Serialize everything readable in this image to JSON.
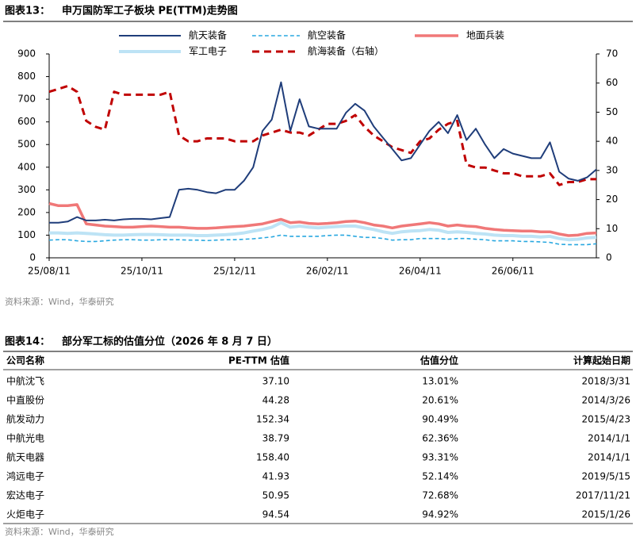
{
  "chart_data": {
    "type": "line",
    "figure_label": "图表13：",
    "title": "申万国防军工子板块 PE(TTM)走势图",
    "categories": [
      "25/08/11",
      null,
      null,
      null,
      null,
      null,
      null,
      null,
      null,
      null,
      "25/10/11",
      null,
      null,
      null,
      null,
      null,
      null,
      null,
      null,
      null,
      "25/12/11",
      null,
      null,
      null,
      null,
      null,
      null,
      null,
      null,
      null,
      "26/02/11",
      null,
      null,
      null,
      null,
      null,
      null,
      null,
      null,
      null,
      "26/04/11",
      null,
      null,
      null,
      null,
      null,
      null,
      null,
      null,
      null,
      "26/06/11",
      null,
      null,
      null,
      null,
      null,
      null,
      null,
      null,
      null
    ],
    "ylim": [
      0,
      900
    ],
    "yticks": [
      0,
      100,
      200,
      300,
      400,
      500,
      600,
      700,
      800,
      900
    ],
    "y2lim": [
      0,
      70
    ],
    "y2ticks": [
      0,
      10,
      20,
      30,
      40,
      50,
      60,
      70
    ],
    "series": [
      {
        "name": "航天装备",
        "color": "#1f3d7a",
        "style": "solid",
        "width": 2,
        "values": [
          155,
          155,
          160,
          180,
          165,
          165,
          168,
          165,
          170,
          172,
          172,
          170,
          175,
          180,
          300,
          305,
          300,
          290,
          285,
          300,
          300,
          340,
          400,
          560,
          610,
          775,
          560,
          700,
          580,
          570,
          570,
          570,
          640,
          680,
          650,
          580,
          530,
          480,
          430,
          440,
          500,
          560,
          600,
          550,
          630,
          520,
          570,
          500,
          440,
          480,
          460,
          450,
          440,
          440,
          510,
          380,
          350,
          340,
          355,
          390
        ]
      },
      {
        "name": "航空装备",
        "color": "#29a8e0",
        "style": "dashed",
        "width": 1.6,
        "values": [
          78,
          80,
          80,
          75,
          72,
          72,
          75,
          78,
          80,
          80,
          78,
          78,
          80,
          80,
          80,
          78,
          78,
          76,
          78,
          80,
          80,
          82,
          84,
          88,
          92,
          100,
          95,
          95,
          95,
          95,
          98,
          100,
          100,
          95,
          90,
          90,
          85,
          78,
          80,
          80,
          85,
          85,
          85,
          82,
          85,
          85,
          82,
          80,
          75,
          75,
          75,
          72,
          72,
          70,
          68,
          60,
          58,
          58,
          58,
          62
        ]
      },
      {
        "name": "地面兵装",
        "color": "#f07878",
        "style": "solid",
        "width": 3.5,
        "values": [
          240,
          230,
          230,
          235,
          150,
          145,
          140,
          138,
          135,
          135,
          138,
          140,
          138,
          135,
          135,
          132,
          130,
          130,
          132,
          135,
          138,
          140,
          145,
          150,
          160,
          170,
          155,
          158,
          152,
          150,
          152,
          155,
          160,
          162,
          155,
          145,
          140,
          132,
          140,
          145,
          150,
          155,
          150,
          140,
          145,
          140,
          138,
          130,
          125,
          122,
          120,
          118,
          118,
          115,
          115,
          105,
          98,
          100,
          108,
          110
        ]
      },
      {
        "name": "军工电子",
        "color": "#bde3f5",
        "style": "solid",
        "width": 4,
        "values": [
          110,
          110,
          108,
          110,
          108,
          105,
          102,
          100,
          100,
          102,
          103,
          103,
          102,
          100,
          100,
          100,
          98,
          98,
          100,
          102,
          105,
          110,
          118,
          125,
          135,
          155,
          135,
          140,
          135,
          132,
          135,
          138,
          140,
          140,
          132,
          125,
          115,
          108,
          115,
          118,
          120,
          125,
          122,
          112,
          115,
          112,
          108,
          105,
          100,
          98,
          98,
          95,
          95,
          92,
          95,
          85,
          80,
          82,
          88,
          90
        ]
      },
      {
        "name": "航海装备（右轴）",
        "color": "#c00000",
        "style": "dashed",
        "width": 3,
        "axis": "y2",
        "values": [
          57,
          58,
          59,
          57,
          47,
          45,
          44,
          57,
          56,
          56,
          56,
          56,
          56,
          57,
          42,
          40,
          40,
          41,
          41,
          41,
          40,
          40,
          40,
          42,
          43,
          44,
          43,
          43,
          42,
          44,
          46,
          46,
          47,
          49,
          45,
          42,
          40,
          38,
          37,
          36,
          40,
          41,
          44,
          46,
          47,
          32,
          31,
          31,
          30,
          29,
          29,
          28,
          28,
          28,
          29,
          25,
          26,
          26,
          27,
          27
        ]
      }
    ]
  },
  "source_1": "资料来源：Wind，华泰研究",
  "table": {
    "label": "图表14：",
    "title": "部分军工标的估值分位（2026 年 8 月 7 日）",
    "columns": [
      "公司名称",
      "PE-TTM 估值",
      "估值分位",
      "计算起始日期"
    ],
    "rows": [
      [
        "中航沈飞",
        "37.10",
        "13.01%",
        "2018/3/31"
      ],
      [
        "中直股份",
        "44.28",
        "20.61%",
        "2014/3/26"
      ],
      [
        "航发动力",
        "152.34",
        "90.49%",
        "2015/4/23"
      ],
      [
        "中航光电",
        "38.79",
        "62.36%",
        "2014/1/1"
      ],
      [
        "航天电器",
        "158.40",
        "93.31%",
        "2014/1/1"
      ],
      [
        "鸿远电子",
        "41.93",
        "52.14%",
        "2019/5/15"
      ],
      [
        "宏达电子",
        "50.95",
        "72.68%",
        "2017/11/21"
      ],
      [
        "火炬电子",
        "94.54",
        "94.92%",
        "2015/1/26"
      ]
    ]
  },
  "source_2": "资料来源：Wind，华泰研究"
}
